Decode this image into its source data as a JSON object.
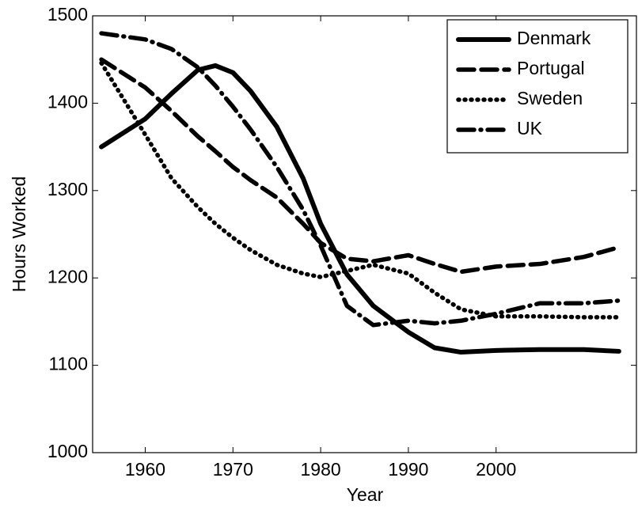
{
  "chart_data": {
    "type": "line",
    "x_label": "Year",
    "y_label": "Hours Worked",
    "x": [
      1955,
      1960,
      1963,
      1966,
      1968,
      1970,
      1972,
      1975,
      1978,
      1980,
      1983,
      1986,
      1990,
      1993,
      1996,
      2000,
      2005,
      2010,
      2014
    ],
    "series": [
      {
        "name": "Denmark",
        "color": "#000000",
        "dash": "solid",
        "values": [
          1350,
          1382,
          1411,
          1438,
          1443,
          1435,
          1414,
          1373,
          1314,
          1262,
          1204,
          1168,
          1138,
          1120,
          1115,
          1117,
          1118,
          1118,
          1116
        ]
      },
      {
        "name": "Portugal",
        "color": "#000000",
        "dash": "dashed",
        "values": [
          1450,
          1418,
          1391,
          1362,
          1345,
          1327,
          1312,
          1292,
          1262,
          1240,
          1222,
          1219,
          1226,
          1216,
          1207,
          1213,
          1216,
          1224,
          1235
        ]
      },
      {
        "name": "Sweden",
        "color": "#000000",
        "dash": "dotted",
        "values": [
          1446,
          1364,
          1314,
          1281,
          1262,
          1246,
          1232,
          1215,
          1205,
          1201,
          1208,
          1215,
          1205,
          1183,
          1164,
          1156,
          1156,
          1155,
          1155
        ]
      },
      {
        "name": "UK",
        "color": "#000000",
        "dash": "dashdot",
        "values": [
          1480,
          1473,
          1462,
          1441,
          1420,
          1396,
          1370,
          1327,
          1278,
          1237,
          1168,
          1146,
          1151,
          1148,
          1151,
          1159,
          1171,
          1171,
          1174
        ]
      }
    ],
    "xlim": [
      1954,
      2016
    ],
    "xticks": [
      1960,
      1970,
      1980,
      1990,
      2000
    ],
    "ylim": [
      1000,
      1500
    ],
    "yticks": [
      1000,
      1100,
      1200,
      1300,
      1400,
      1500
    ],
    "grid": false,
    "legend": "upper right"
  }
}
